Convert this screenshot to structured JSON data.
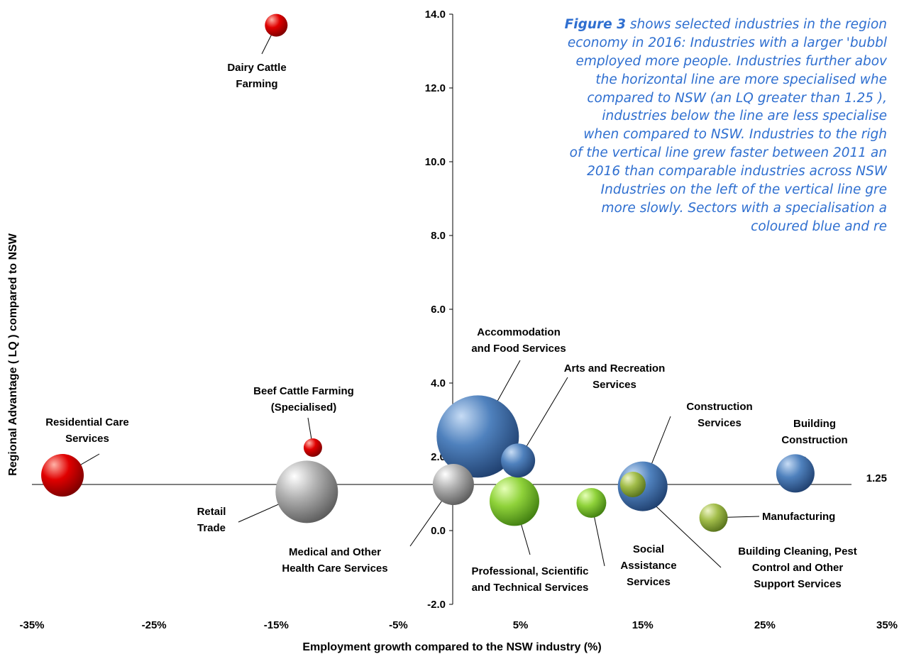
{
  "annotation": {
    "figure_ref": "Figure 3",
    "lines": [
      " shows selected industries in the region",
      "economy in 2016: Industries with a larger 'bubbl",
      "employed more people. Industries further abov",
      "the horizontal line are more specialised whe",
      "compared to NSW (an LQ greater than 1.25 ),",
      "industries below the line are less specialise",
      "when compared to NSW. Industries to the righ",
      "of the vertical line grew faster between 2011 an",
      "2016 than comparable industries across NSW",
      "Industries on the left of the vertical line gre",
      "more slowly. Sectors with a specialisation a",
      "coloured blue and re"
    ]
  },
  "chart_data": {
    "type": "scatter",
    "xlabel": "Employment growth compared to the NSW industry (%)",
    "ylabel": "Regional  Advantage ( LQ ) compared to NSW",
    "xlim": [
      -35,
      35
    ],
    "ylim": [
      -2,
      14
    ],
    "x_ticks": [
      "-35%",
      "-25%",
      "-15%",
      "-5%",
      "5%",
      "15%",
      "25%",
      "35%"
    ],
    "y_ticks": [
      "-2.0",
      "0.0",
      "2.0",
      "4.0",
      "6.0",
      "8.0",
      "10.0",
      "12.0",
      "14.0"
    ],
    "reference_line": {
      "y": 1.25,
      "label": "1.25"
    },
    "colors": {
      "red": "#e00000",
      "grey": "#a6a6a6",
      "blue": "#4f81bd",
      "green": "#8fd23a",
      "olive": "#a2bd4a"
    },
    "bubbles": [
      {
        "label": [
          "Dairy Cattle",
          "Farming"
        ],
        "x": -15.0,
        "y": 13.7,
        "size": 16,
        "color": "red"
      },
      {
        "label": [
          "Residential Care",
          "Services"
        ],
        "x": -32.5,
        "y": 1.5,
        "size": 30,
        "color": "red"
      },
      {
        "label": [
          "Beef Cattle Farming",
          "(Specialised)"
        ],
        "x": -12.0,
        "y": 2.25,
        "size": 13,
        "color": "red"
      },
      {
        "label": [
          "Retail",
          "Trade"
        ],
        "x": -12.5,
        "y": 1.05,
        "size": 44,
        "color": "grey"
      },
      {
        "label": [
          "Medical and Other",
          "Health Care Services"
        ],
        "x": -0.5,
        "y": 1.25,
        "size": 29,
        "color": "grey"
      },
      {
        "label": [
          "Accommodation",
          "and Food Services"
        ],
        "x": 1.5,
        "y": 2.55,
        "size": 58,
        "color": "blue"
      },
      {
        "label": [
          "Arts and Recreation",
          "Services"
        ],
        "x": 4.8,
        "y": 1.9,
        "size": 24,
        "color": "blue"
      },
      {
        "label": [
          "Professional, Scientific",
          "and Technical Services"
        ],
        "x": 4.5,
        "y": 0.8,
        "size": 35,
        "color": "green"
      },
      {
        "label": [
          "Social",
          "Assistance",
          "Services"
        ],
        "x": 10.8,
        "y": 0.75,
        "size": 21,
        "color": "green"
      },
      {
        "label": [
          "Construction",
          "Services"
        ],
        "x": 15.0,
        "y": 1.2,
        "size": 35,
        "color": "blue"
      },
      {
        "label": [
          "Building Cleaning, Pest",
          "Control and Other",
          "Support Services"
        ],
        "x": 14.2,
        "y": 1.25,
        "size": 18,
        "color": "olive"
      },
      {
        "label": [
          "Building",
          "Construction"
        ],
        "x": 27.5,
        "y": 1.55,
        "size": 27,
        "color": "blue"
      },
      {
        "label": [
          "Manufacturing"
        ],
        "x": 20.8,
        "y": 0.35,
        "size": 20,
        "color": "olive"
      }
    ]
  }
}
